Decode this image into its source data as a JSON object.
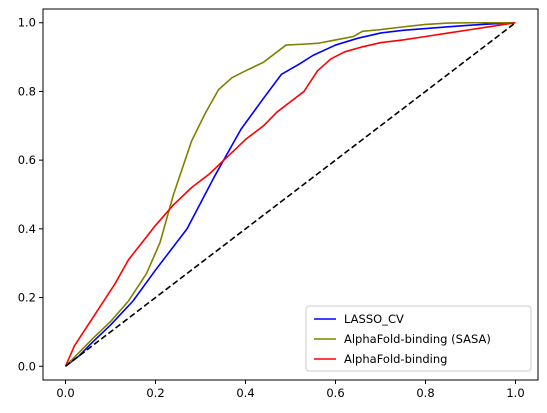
{
  "chart_data": {
    "type": "line",
    "title": "",
    "xlabel": "",
    "ylabel": "",
    "xlim": [
      -0.05,
      1.05
    ],
    "ylim": [
      -0.04,
      1.04
    ],
    "xticks": [
      0.0,
      0.2,
      0.4,
      0.6,
      0.8,
      1.0
    ],
    "xtick_labels": [
      "0.0",
      "0.2",
      "0.4",
      "0.6",
      "0.8",
      "1.0"
    ],
    "yticks": [
      0.0,
      0.2,
      0.4,
      0.6,
      0.8,
      1.0
    ],
    "ytick_labels": [
      "0.0",
      "0.2",
      "0.4",
      "0.6",
      "0.8",
      "1.0"
    ],
    "grid": false,
    "legend_position": "lower-right",
    "series": [
      {
        "name": "LASSO_CV",
        "color": "#0000ff",
        "dashed": false,
        "x": [
          0,
          0.03,
          0.06,
          0.1,
          0.15,
          0.2,
          0.27,
          0.33,
          0.39,
          0.44,
          0.48,
          0.52,
          0.55,
          0.6,
          0.65,
          0.7,
          0.75,
          0.8,
          0.85,
          0.9,
          0.95,
          1.0
        ],
        "y": [
          0,
          0.03,
          0.07,
          0.12,
          0.19,
          0.28,
          0.4,
          0.55,
          0.69,
          0.78,
          0.85,
          0.88,
          0.905,
          0.935,
          0.955,
          0.97,
          0.978,
          0.983,
          0.988,
          0.993,
          0.997,
          1.0
        ]
      },
      {
        "name": "AlphaFold-binding (SASA)",
        "color": "#808000",
        "dashed": false,
        "x": [
          0,
          0.03,
          0.06,
          0.1,
          0.14,
          0.18,
          0.21,
          0.24,
          0.28,
          0.31,
          0.34,
          0.37,
          0.4,
          0.44,
          0.47,
          0.49,
          0.52,
          0.56,
          0.6,
          0.64,
          0.66,
          0.7,
          0.75,
          0.8,
          0.85,
          0.9,
          0.95,
          1.0
        ],
        "y": [
          0,
          0.04,
          0.08,
          0.13,
          0.19,
          0.27,
          0.36,
          0.5,
          0.655,
          0.735,
          0.805,
          0.84,
          0.86,
          0.885,
          0.915,
          0.935,
          0.937,
          0.94,
          0.95,
          0.96,
          0.975,
          0.98,
          0.988,
          0.995,
          0.999,
          1.0,
          1.0,
          1.0
        ]
      },
      {
        "name": "AlphaFold-binding",
        "color": "#ff0000",
        "dashed": false,
        "x": [
          0,
          0.02,
          0.05,
          0.08,
          0.11,
          0.14,
          0.17,
          0.2,
          0.24,
          0.28,
          0.32,
          0.36,
          0.4,
          0.44,
          0.47,
          0.5,
          0.53,
          0.56,
          0.59,
          0.62,
          0.66,
          0.7,
          0.75,
          0.8,
          0.85,
          0.9,
          0.95,
          1.0
        ],
        "y": [
          0,
          0.06,
          0.12,
          0.18,
          0.24,
          0.31,
          0.36,
          0.41,
          0.47,
          0.52,
          0.56,
          0.61,
          0.66,
          0.7,
          0.74,
          0.77,
          0.8,
          0.86,
          0.895,
          0.915,
          0.93,
          0.942,
          0.95,
          0.96,
          0.97,
          0.98,
          0.99,
          1.0
        ]
      },
      {
        "name": "",
        "color": "#000000",
        "dashed": true,
        "x": [
          0,
          1
        ],
        "y": [
          0,
          1
        ]
      }
    ],
    "legend": [
      "LASSO_CV",
      "AlphaFold-binding (SASA)",
      "AlphaFold-binding"
    ]
  }
}
